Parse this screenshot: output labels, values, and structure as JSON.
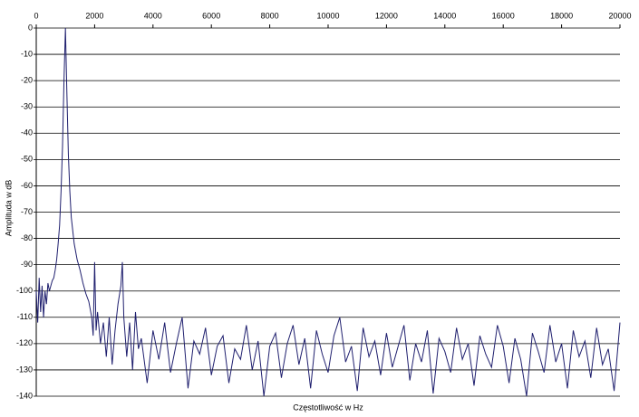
{
  "chart_data": {
    "type": "line",
    "x_label": "Częstotliwość w Hz",
    "y_label": "Amplituda w dB",
    "color": "#1f1f6e",
    "grid": true,
    "xlim": [
      0,
      20000
    ],
    "xticks": [
      0,
      2000,
      4000,
      6000,
      8000,
      10000,
      12000,
      14000,
      16000,
      18000,
      20000
    ],
    "ylim": [
      -140,
      0
    ],
    "yticks": [
      0,
      -10,
      -20,
      -30,
      -40,
      -50,
      -60,
      -70,
      -80,
      -90,
      -100,
      -110,
      -120,
      -130,
      -140
    ],
    "x": [
      0,
      50,
      100,
      150,
      200,
      250,
      300,
      350,
      400,
      450,
      500,
      550,
      600,
      650,
      700,
      750,
      800,
      850,
      900,
      950,
      1000,
      1050,
      1100,
      1150,
      1200,
      1300,
      1400,
      1500,
      1600,
      1700,
      1800,
      1900,
      1950,
      2000,
      2050,
      2100,
      2200,
      2300,
      2400,
      2500,
      2600,
      2700,
      2800,
      2900,
      2950,
      3000,
      3100,
      3200,
      3300,
      3400,
      3500,
      3600,
      3800,
      4000,
      4200,
      4400,
      4600,
      4800,
      5000,
      5200,
      5400,
      5600,
      5800,
      6000,
      6200,
      6400,
      6600,
      6800,
      7000,
      7200,
      7400,
      7600,
      7800,
      8000,
      8200,
      8400,
      8600,
      8800,
      9000,
      9200,
      9400,
      9600,
      9800,
      10000,
      10200,
      10400,
      10600,
      10800,
      11000,
      11200,
      11400,
      11600,
      11800,
      12000,
      12200,
      12400,
      12600,
      12800,
      13000,
      13200,
      13400,
      13600,
      13800,
      14000,
      14200,
      14400,
      14600,
      14800,
      15000,
      15200,
      15400,
      15600,
      15800,
      16000,
      16200,
      16400,
      16600,
      16800,
      17000,
      17200,
      17400,
      17600,
      17800,
      18000,
      18200,
      18400,
      18600,
      18800,
      19000,
      19200,
      19400,
      19600,
      19800,
      20000
    ],
    "values": [
      -100,
      -112,
      -95,
      -108,
      -98,
      -110,
      -100,
      -105,
      -97,
      -100,
      -98,
      -96,
      -95,
      -92,
      -88,
      -82,
      -75,
      -62,
      -45,
      -20,
      0,
      -25,
      -48,
      -62,
      -72,
      -82,
      -88,
      -92,
      -97,
      -101,
      -104,
      -110,
      -117,
      -89,
      -115,
      -108,
      -120,
      -112,
      -125,
      -110,
      -128,
      -115,
      -105,
      -98,
      -89,
      -110,
      -125,
      -112,
      -130,
      -108,
      -122,
      -118,
      -135,
      -115,
      -126,
      -112,
      -131,
      -120,
      -110,
      -137,
      -119,
      -124,
      -114,
      -132,
      -121,
      -117,
      -135,
      -122,
      -126,
      -113,
      -130,
      -119,
      -140,
      -121,
      -116,
      -133,
      -120,
      -113,
      -128,
      -118,
      -137,
      -115,
      -124,
      -131,
      -117,
      -110,
      -127,
      -121,
      -138,
      -114,
      -125,
      -119,
      -132,
      -116,
      -129,
      -121,
      -113,
      -134,
      -120,
      -127,
      -115,
      -139,
      -118,
      -123,
      -131,
      -114,
      -126,
      -120,
      -136,
      -117,
      -124,
      -129,
      -113,
      -121,
      -135,
      -118,
      -126,
      -140,
      -116,
      -123,
      -131,
      -113,
      -127,
      -120,
      -137,
      -115,
      -125,
      -119,
      -133,
      -114,
      -128,
      -122,
      -138,
      -112
    ]
  }
}
